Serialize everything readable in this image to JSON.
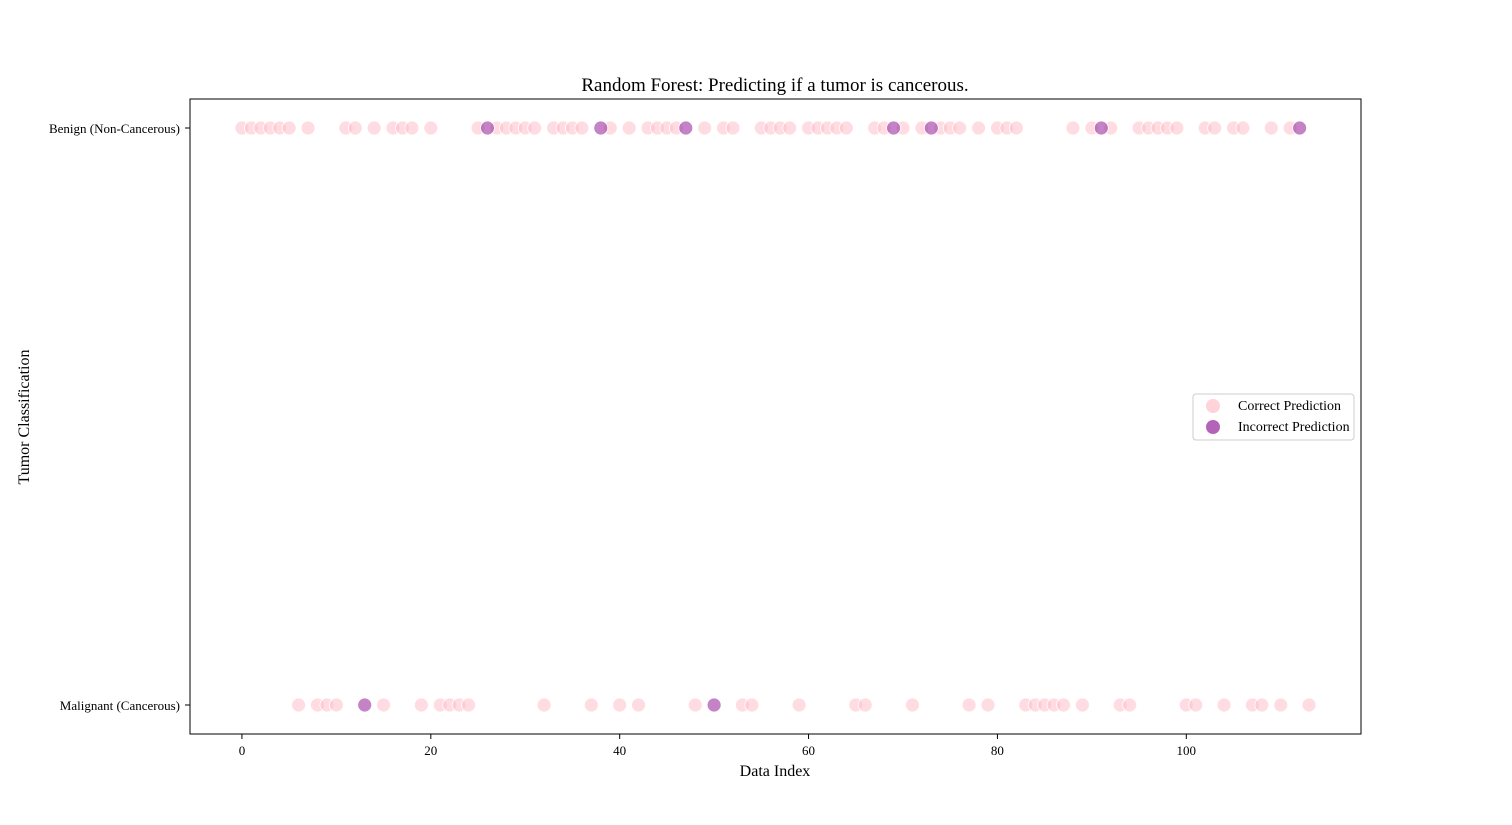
{
  "chart_data": {
    "type": "scatter",
    "title": "Random Forest: Predicting if a tumor is cancerous.",
    "xlabel": "Data Index",
    "ylabel": "Tumor Classification",
    "xlim": [
      -5.5,
      118.5
    ],
    "xticks": [
      0,
      20,
      40,
      60,
      80,
      100
    ],
    "ycategories": [
      "Malignant (Cancerous)",
      "Benign (Non-Cancerous)"
    ],
    "grid": false,
    "legend_position": "center-right",
    "series": [
      {
        "name": "Correct Prediction",
        "color": "#ffc0cb",
        "opacity": 0.55,
        "benign_x": [
          0,
          1,
          2,
          3,
          4,
          5,
          7,
          11,
          12,
          14,
          16,
          17,
          18,
          20,
          25,
          27,
          28,
          29,
          30,
          31,
          33,
          34,
          35,
          36,
          39,
          41,
          43,
          44,
          45,
          46,
          49,
          51,
          52,
          55,
          56,
          57,
          58,
          60,
          61,
          62,
          63,
          64,
          67,
          68,
          70,
          72,
          74,
          75,
          76,
          78,
          80,
          81,
          82,
          88,
          90,
          92,
          95,
          96,
          97,
          98,
          99,
          102,
          103,
          105,
          106,
          109,
          111
        ],
        "malignant_x": [
          6,
          8,
          9,
          10,
          15,
          19,
          21,
          22,
          23,
          24,
          32,
          37,
          40,
          42,
          48,
          53,
          54,
          59,
          65,
          66,
          71,
          77,
          79,
          83,
          84,
          85,
          86,
          87,
          89,
          93,
          94,
          100,
          101,
          104,
          107,
          108,
          110,
          113
        ]
      },
      {
        "name": "Incorrect Prediction",
        "color": "#9b30a0",
        "opacity": 0.6,
        "benign_x": [
          26,
          38,
          47,
          69,
          73,
          91,
          112
        ],
        "malignant_x": [
          13,
          50
        ]
      }
    ]
  }
}
